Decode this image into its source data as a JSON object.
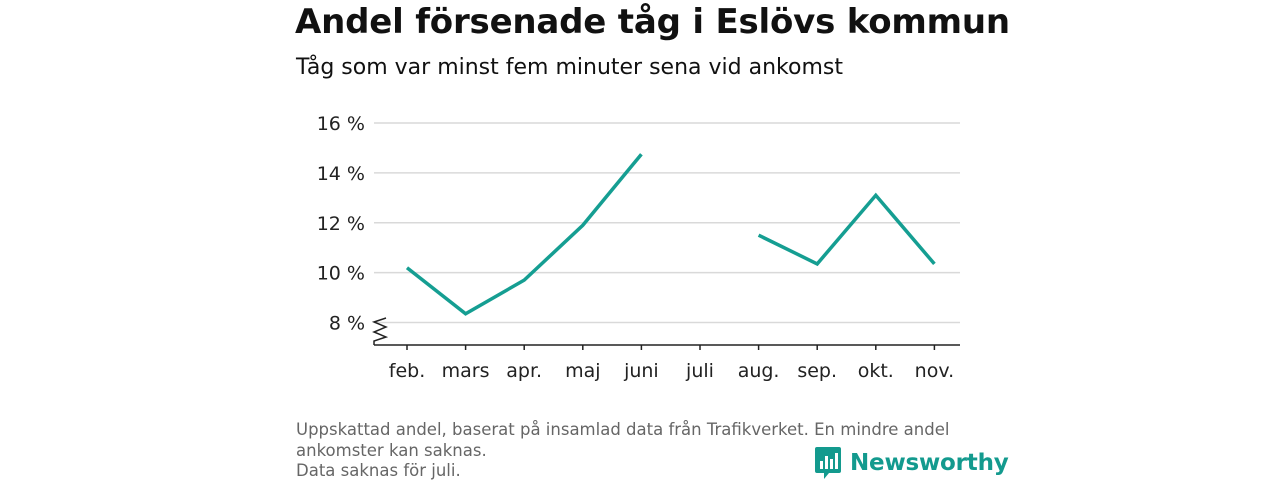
{
  "header": {
    "title": "Andel försenade tåg i Eslövs kommun",
    "subtitle": "Tåg som var minst fem minuter sena vid ankomst"
  },
  "chart_data": {
    "type": "line",
    "categories": [
      "feb.",
      "mars",
      "apr.",
      "maj",
      "juni",
      "juli",
      "aug.",
      "sep.",
      "okt.",
      "nov."
    ],
    "series": [
      {
        "values": [
          10.2,
          8.35,
          9.7,
          11.9,
          14.75,
          null,
          11.5,
          10.35,
          13.1,
          10.35
        ]
      }
    ],
    "y_ticks": [
      8,
      10,
      12,
      14,
      16
    ],
    "y_tick_suffix": " %",
    "ylim": [
      7.1,
      16
    ],
    "y_axis_break": true,
    "grid": true,
    "line_color": "#159e92",
    "grid_color": "#d9d9d9"
  },
  "footer": {
    "note_lines": [
      "Uppskattad andel, baserat på insamlad data från Trafikverket. En mindre andel",
      "ankomster kan saknas.",
      "Data saknas för juli."
    ],
    "brand": "Newsworthy",
    "brand_color": "#139a8e"
  }
}
